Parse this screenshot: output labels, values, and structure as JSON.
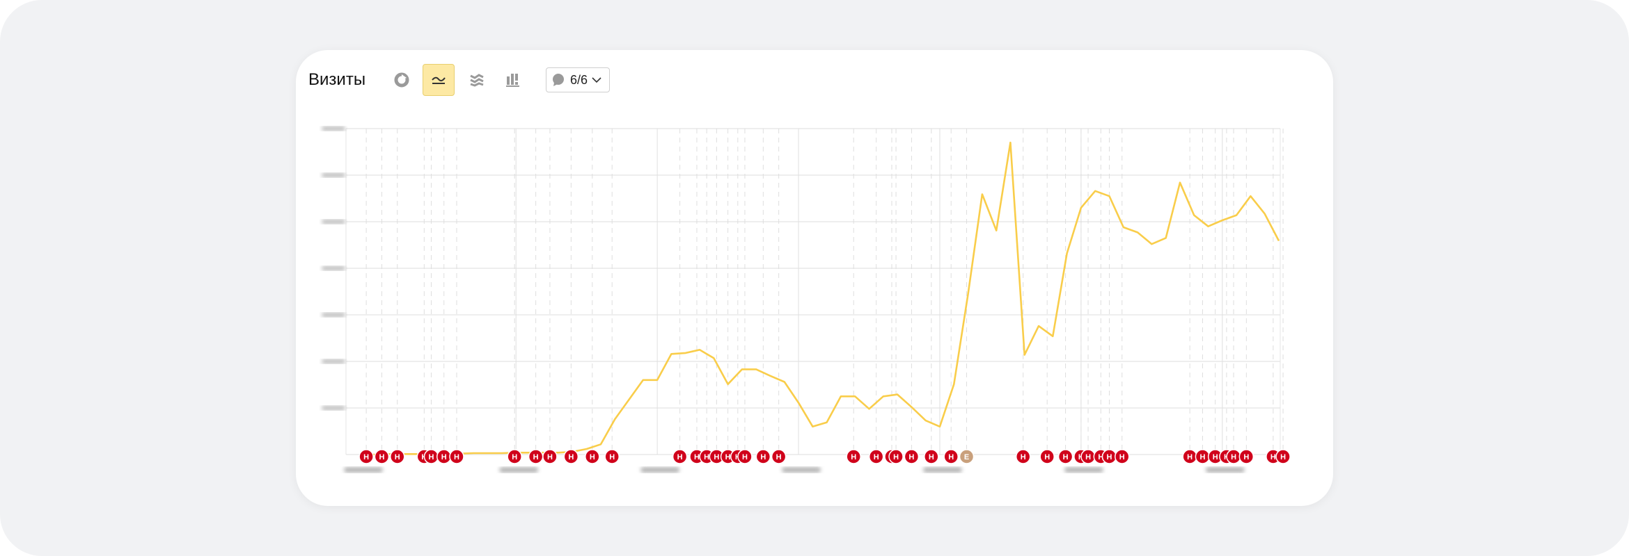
{
  "header": {
    "title": "Визиты",
    "toolbar": [
      "pie-chart-icon",
      "line-chart-icon",
      "stacked-area-icon",
      "column-chart-icon"
    ],
    "active": "line-chart-icon",
    "notes_filter": "6/6"
  },
  "colors": {
    "line": "#f9cd4a",
    "marker": "#d0021b",
    "marker_special": "#c9a07c",
    "active_button": "#fde9a4"
  },
  "chart_data": {
    "type": "line",
    "title": "",
    "xlabel": "",
    "ylabel": "",
    "ylim": [
      0,
      70
    ],
    "grid": true,
    "note": "",
    "x": [
      0,
      1,
      2,
      3,
      4,
      5,
      6,
      7,
      8,
      9,
      10,
      11,
      12,
      13,
      14,
      15,
      16,
      17,
      18,
      19,
      20,
      21,
      22,
      23,
      24,
      25,
      26,
      27,
      28,
      29,
      30,
      31,
      32,
      33,
      34,
      35,
      36,
      37,
      38,
      39,
      40,
      41,
      42,
      43,
      44,
      45,
      46,
      47,
      48,
      49,
      50,
      51,
      52,
      53,
      54,
      55,
      56,
      57,
      58,
      59,
      60,
      61,
      62,
      63,
      64,
      65
    ],
    "series": [
      {
        "values": [
          0,
          0,
          0.1,
          0.1,
          0.1,
          0.1,
          0.2,
          0.2,
          0.3,
          0.3,
          0.3,
          0.4,
          0.4,
          0.4,
          0.4,
          0.6,
          1.2,
          2.2,
          7.6,
          11.8,
          16,
          16,
          21.6,
          21.8,
          22.5,
          20.7,
          15.1,
          18.3,
          18.3,
          16.9,
          15.6,
          11.1,
          6,
          6.9,
          12.5,
          12.5,
          9.8,
          12.5,
          12.9,
          10.2,
          7.3,
          6,
          15.1,
          34.5,
          55.9,
          48.1,
          67,
          21.4,
          27.6,
          25.4,
          43.2,
          53,
          56.6,
          55.5,
          48.8,
          47.7,
          45.2,
          46.5,
          58.4,
          51.4,
          49,
          50.3,
          51.4,
          55.5,
          51.7,
          45.9
        ]
      }
    ],
    "annotations": [
      {
        "x": 0.4,
        "label": "Н"
      },
      {
        "x": 1.5,
        "label": "Н"
      },
      {
        "x": 2.6,
        "label": "Н"
      },
      {
        "x": 4.5,
        "label": "Н"
      },
      {
        "x": 5,
        "label": "Н"
      },
      {
        "x": 5.9,
        "label": "Н"
      },
      {
        "x": 6.8,
        "label": "Н"
      },
      {
        "x": 10.9,
        "label": "Н"
      },
      {
        "x": 12.4,
        "label": "Н"
      },
      {
        "x": 13.4,
        "label": "Н"
      },
      {
        "x": 14.9,
        "label": "Н"
      },
      {
        "x": 16.4,
        "label": "Н"
      },
      {
        "x": 17.8,
        "label": "Н"
      },
      {
        "x": 22.6,
        "label": "Н"
      },
      {
        "x": 23.8,
        "label": "Н"
      },
      {
        "x": 24.5,
        "label": "Н"
      },
      {
        "x": 25.2,
        "label": "Н"
      },
      {
        "x": 26,
        "label": "Н"
      },
      {
        "x": 26.7,
        "label": "Н"
      },
      {
        "x": 27.2,
        "label": "Н"
      },
      {
        "x": 28.5,
        "label": "Н"
      },
      {
        "x": 29.6,
        "label": "Н"
      },
      {
        "x": 34.9,
        "label": "Н"
      },
      {
        "x": 36.5,
        "label": "Н"
      },
      {
        "x": 37.6,
        "label": "Н"
      },
      {
        "x": 37.9,
        "label": "Н"
      },
      {
        "x": 39,
        "label": "Н"
      },
      {
        "x": 40.4,
        "label": "Н"
      },
      {
        "x": 41.8,
        "label": "Н"
      },
      {
        "x": 42.9,
        "label": "Е"
      },
      {
        "x": 46.9,
        "label": "Н"
      },
      {
        "x": 48.6,
        "label": "Н"
      },
      {
        "x": 49.9,
        "label": "Н"
      },
      {
        "x": 51,
        "label": "Н"
      },
      {
        "x": 51.5,
        "label": "Н"
      },
      {
        "x": 52.4,
        "label": "Н"
      },
      {
        "x": 53,
        "label": "Н"
      },
      {
        "x": 53.9,
        "label": "Н"
      },
      {
        "x": 58.7,
        "label": "Н"
      },
      {
        "x": 59.6,
        "label": "Н"
      },
      {
        "x": 60.5,
        "label": "Н"
      },
      {
        "x": 61.3,
        "label": "Н"
      },
      {
        "x": 61.8,
        "label": "Н"
      },
      {
        "x": 62.7,
        "label": "Н"
      },
      {
        "x": 64.6,
        "label": "Н"
      },
      {
        "x": 65.3,
        "label": "Н"
      }
    ]
  }
}
